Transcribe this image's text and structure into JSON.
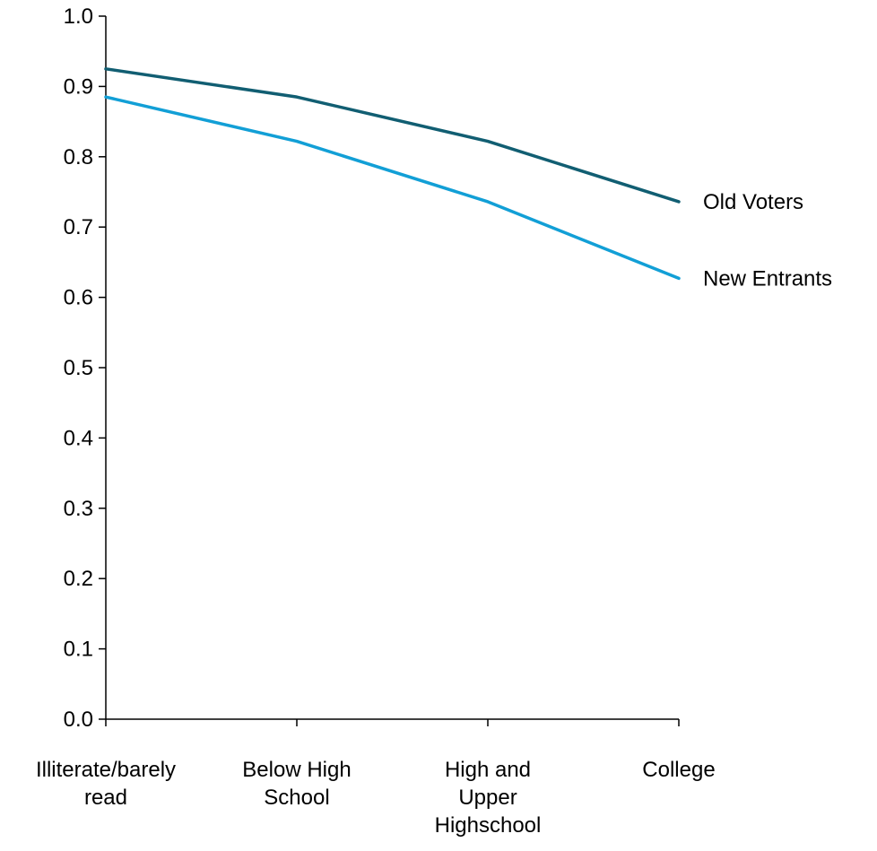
{
  "chart_data": {
    "type": "line",
    "title": "",
    "xlabel": "",
    "ylabel": "",
    "categories": [
      [
        "Illiterate/barely",
        "read"
      ],
      [
        "Below High",
        "School"
      ],
      [
        "High and",
        "Upper",
        "Highschool"
      ],
      [
        "College"
      ]
    ],
    "ylim": [
      0.0,
      1.0
    ],
    "yticks": [
      "0.0",
      "0.1",
      "0.2",
      "0.3",
      "0.4",
      "0.5",
      "0.6",
      "0.7",
      "0.8",
      "0.9",
      "1.0"
    ],
    "grid": false,
    "legend": "inline-right",
    "series": [
      {
        "name": "Old Voters",
        "values": [
          0.925,
          0.885,
          0.822,
          0.736
        ],
        "color": "#115e72"
      },
      {
        "name": "New Entrants",
        "values": [
          0.885,
          0.822,
          0.736,
          0.627
        ],
        "color": "#129fd6"
      }
    ]
  }
}
